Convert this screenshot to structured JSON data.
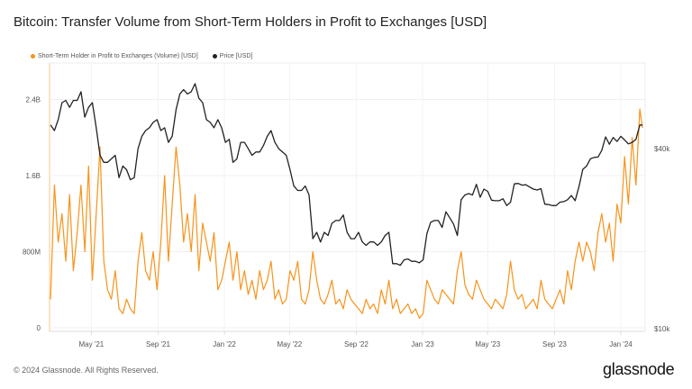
{
  "title": "Bitcoin: Transfer Volume from Short-Term Holders in Profit to Exchanges [USD]",
  "footer": "© 2024 Glassnode. All Rights Reserved.",
  "logo_text": "glassnode",
  "chart_data": {
    "type": "line",
    "title": "Bitcoin: Transfer Volume from Short-Term Holders in Profit to Exchanges [USD]",
    "legend_position": "top-left",
    "grid": true,
    "x_ticks": [
      {
        "label": "May '21",
        "date": "2021-05-01"
      },
      {
        "label": "Sep '21",
        "date": "2021-09-01"
      },
      {
        "label": "Jan '22",
        "date": "2022-01-01"
      },
      {
        "label": "May '22",
        "date": "2022-05-01"
      },
      {
        "label": "Sep '22",
        "date": "2022-09-01"
      },
      {
        "label": "Jan '23",
        "date": "2023-01-01"
      },
      {
        "label": "May '23",
        "date": "2023-05-01"
      },
      {
        "label": "Sep '23",
        "date": "2023-09-01"
      },
      {
        "label": "Jan '24",
        "date": "2024-01-01"
      }
    ],
    "y_left": {
      "scale": "linear",
      "unit": "USD",
      "ticks": [
        {
          "label": "0",
          "value": 0
        },
        {
          "label": "800M",
          "value": 800
        },
        {
          "label": "1.6B",
          "value": 1600
        },
        {
          "label": "2.4B",
          "value": 2400
        }
      ]
    },
    "y_right": {
      "scale": "log",
      "unit": "USD",
      "ticks": [
        {
          "label": "$10k",
          "value": 10000
        },
        {
          "label": "$40k",
          "value": 40000
        }
      ]
    },
    "x": [
      "2021-02-15",
      "2021-02-22",
      "2021-03-01",
      "2021-03-08",
      "2021-03-15",
      "2021-03-22",
      "2021-03-29",
      "2021-04-05",
      "2021-04-12",
      "2021-04-19",
      "2021-04-26",
      "2021-05-03",
      "2021-05-10",
      "2021-05-17",
      "2021-05-24",
      "2021-05-31",
      "2021-06-07",
      "2021-06-14",
      "2021-06-21",
      "2021-06-28",
      "2021-07-05",
      "2021-07-12",
      "2021-07-19",
      "2021-07-26",
      "2021-08-02",
      "2021-08-09",
      "2021-08-16",
      "2021-08-23",
      "2021-08-30",
      "2021-09-06",
      "2021-09-13",
      "2021-09-20",
      "2021-09-27",
      "2021-10-04",
      "2021-10-11",
      "2021-10-18",
      "2021-10-25",
      "2021-11-01",
      "2021-11-08",
      "2021-11-15",
      "2021-11-22",
      "2021-11-29",
      "2021-12-06",
      "2021-12-13",
      "2021-12-20",
      "2021-12-27",
      "2022-01-03",
      "2022-01-10",
      "2022-01-17",
      "2022-01-24",
      "2022-01-31",
      "2022-02-07",
      "2022-02-14",
      "2022-02-21",
      "2022-02-28",
      "2022-03-07",
      "2022-03-14",
      "2022-03-21",
      "2022-03-28",
      "2022-04-04",
      "2022-04-11",
      "2022-04-18",
      "2022-04-25",
      "2022-05-02",
      "2022-05-09",
      "2022-05-16",
      "2022-05-23",
      "2022-05-30",
      "2022-06-06",
      "2022-06-13",
      "2022-06-20",
      "2022-06-27",
      "2022-07-04",
      "2022-07-11",
      "2022-07-18",
      "2022-07-25",
      "2022-08-01",
      "2022-08-08",
      "2022-08-15",
      "2022-08-22",
      "2022-08-29",
      "2022-09-05",
      "2022-09-12",
      "2022-09-19",
      "2022-09-26",
      "2022-10-03",
      "2022-10-10",
      "2022-10-17",
      "2022-10-24",
      "2022-10-31",
      "2022-11-07",
      "2022-11-14",
      "2022-11-21",
      "2022-11-28",
      "2022-12-05",
      "2022-12-12",
      "2022-12-19",
      "2022-12-26",
      "2023-01-02",
      "2023-01-09",
      "2023-01-16",
      "2023-01-23",
      "2023-01-30",
      "2023-02-06",
      "2023-02-13",
      "2023-02-20",
      "2023-02-27",
      "2023-03-06",
      "2023-03-13",
      "2023-03-20",
      "2023-03-27",
      "2023-04-03",
      "2023-04-10",
      "2023-04-17",
      "2023-04-24",
      "2023-05-01",
      "2023-05-08",
      "2023-05-15",
      "2023-05-22",
      "2023-05-29",
      "2023-06-05",
      "2023-06-12",
      "2023-06-19",
      "2023-06-26",
      "2023-07-03",
      "2023-07-10",
      "2023-07-17",
      "2023-07-24",
      "2023-07-31",
      "2023-08-07",
      "2023-08-14",
      "2023-08-21",
      "2023-08-28",
      "2023-09-04",
      "2023-09-11",
      "2023-09-18",
      "2023-09-25",
      "2023-10-02",
      "2023-10-09",
      "2023-10-16",
      "2023-10-23",
      "2023-10-30",
      "2023-11-06",
      "2023-11-13",
      "2023-11-20",
      "2023-11-27",
      "2023-12-04",
      "2023-12-11",
      "2023-12-18",
      "2023-12-25",
      "2024-01-01",
      "2024-01-08",
      "2024-01-15",
      "2024-01-22",
      "2024-01-29",
      "2024-02-05",
      "2024-02-10"
    ],
    "series": [
      {
        "name": "Short-Term Holder in Profit to Exchanges (Volume) [USD]",
        "axis": "left",
        "unit": "million USD",
        "color": "#f7931a",
        "values": [
          300,
          1500,
          900,
          1200,
          700,
          1400,
          600,
          1000,
          1500,
          800,
          1700,
          500,
          1200,
          1900,
          700,
          400,
          300,
          600,
          200,
          150,
          300,
          200,
          150,
          700,
          1000,
          600,
          500,
          800,
          400,
          900,
          1600,
          700,
          1300,
          1900,
          1500,
          900,
          1200,
          800,
          1400,
          600,
          1100,
          900,
          700,
          1000,
          400,
          500,
          700,
          900,
          500,
          800,
          400,
          600,
          350,
          500,
          300,
          600,
          400,
          500,
          700,
          300,
          400,
          250,
          300,
          600,
          500,
          700,
          300,
          250,
          400,
          800,
          500,
          300,
          250,
          350,
          500,
          250,
          300,
          200,
          400,
          300,
          250,
          200,
          150,
          300,
          200,
          250,
          150,
          400,
          250,
          500,
          200,
          300,
          150,
          200,
          250,
          150,
          200,
          100,
          150,
          500,
          400,
          300,
          250,
          400,
          350,
          300,
          250,
          600,
          800,
          450,
          350,
          300,
          500,
          400,
          300,
          250,
          200,
          300,
          250,
          200,
          350,
          700,
          400,
          300,
          350,
          200,
          250,
          300,
          200,
          500,
          300,
          250,
          200,
          300,
          400,
          250,
          600,
          400,
          700,
          900,
          700,
          900,
          800,
          600,
          1000,
          1200,
          900,
          1100,
          700,
          1300,
          1100,
          1800,
          1300,
          2000,
          1500,
          2300,
          2100
        ]
      },
      {
        "name": "Price [USD]",
        "axis": "right",
        "color": "#222222",
        "values": [
          48000,
          46000,
          50000,
          57000,
          58000,
          55000,
          58000,
          58000,
          62000,
          51000,
          55000,
          57000,
          47000,
          38000,
          36000,
          36000,
          37000,
          38000,
          32000,
          35000,
          34000,
          31500,
          32000,
          40000,
          44000,
          46000,
          47000,
          49000,
          50000,
          46000,
          47000,
          42000,
          44000,
          54000,
          61000,
          63000,
          61000,
          62000,
          66000,
          59000,
          57000,
          50000,
          49000,
          47000,
          50000,
          47000,
          42000,
          43000,
          36000,
          37000,
          42000,
          42000,
          40000,
          38000,
          39000,
          39000,
          41000,
          44000,
          46000,
          42000,
          40000,
          39000,
          38000,
          34000,
          30000,
          29000,
          29000,
          30000,
          28000,
          20000,
          21000,
          19500,
          21000,
          20500,
          22500,
          23000,
          23000,
          24000,
          21000,
          20000,
          20000,
          21000,
          19500,
          19000,
          19500,
          19500,
          19000,
          19500,
          20500,
          21000,
          16500,
          16500,
          16300,
          17000,
          17100,
          16800,
          16800,
          16600,
          17000,
          20800,
          22700,
          23000,
          23000,
          21800,
          24600,
          23500,
          22400,
          20500,
          27000,
          28000,
          28300,
          28000,
          30400,
          27500,
          29300,
          28800,
          26900,
          26800,
          26800,
          27200,
          25800,
          26500,
          30500,
          30600,
          30200,
          30300,
          29800,
          29300,
          29100,
          29400,
          26100,
          26000,
          25800,
          25800,
          26500,
          26600,
          27000,
          27900,
          26800,
          29900,
          34100,
          35000,
          37000,
          37400,
          37500,
          39500,
          43800,
          41400,
          43600,
          42300,
          44000,
          42800,
          41500,
          42000,
          43000,
          48000,
          48000
        ]
      }
    ]
  }
}
